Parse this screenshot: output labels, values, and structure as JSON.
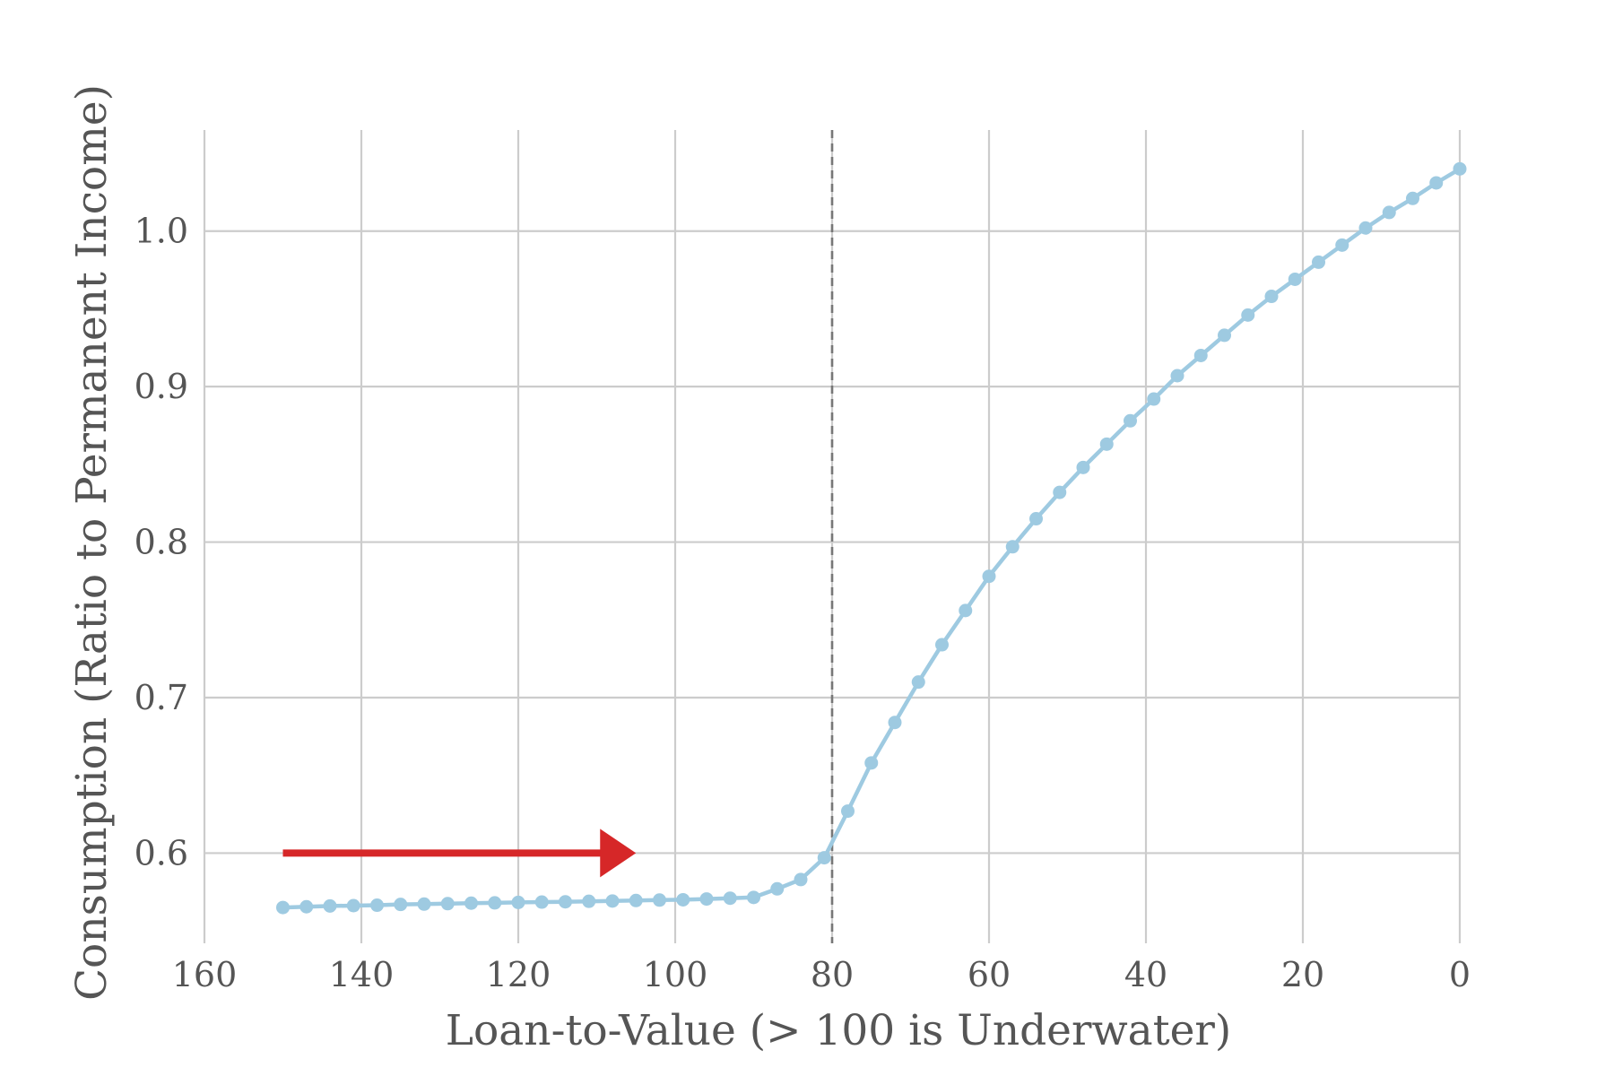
{
  "chart_data": {
    "type": "line",
    "title": "",
    "xlabel": "Loan-to-Value (> 100 is Underwater)",
    "ylabel": "Consumption (Ratio to Permanent Income)",
    "xlim": [
      160,
      0
    ],
    "ylim": [
      0.542,
      1.065
    ],
    "x_reversed": true,
    "grid": true,
    "legend": "none",
    "xticks": [
      160,
      140,
      120,
      100,
      80,
      60,
      40,
      20,
      0
    ],
    "xtick_labels": [
      "160",
      "140",
      "120",
      "100",
      "80",
      "60",
      "40",
      "20",
      "0"
    ],
    "yticks": [
      0.6,
      0.7,
      0.8,
      0.9,
      1.0
    ],
    "ytick_labels": [
      "0.6",
      "0.7",
      "0.8",
      "0.9",
      "1.0"
    ],
    "reference_line": {
      "x": 80,
      "style": "dashed",
      "color": "#777777"
    },
    "arrow": {
      "x_start": 150,
      "x_end": 105,
      "y": 0.6,
      "color": "#d62728"
    },
    "series": [
      {
        "color": "#9ecae1",
        "x": [
          150,
          147,
          144,
          141,
          138,
          135,
          132,
          129,
          126,
          123,
          120,
          117,
          114,
          111,
          108,
          105,
          102,
          99,
          96,
          93,
          90,
          87,
          84,
          81,
          78,
          75,
          72,
          69,
          66,
          63,
          60,
          57,
          54,
          51,
          48,
          45,
          42,
          39,
          36,
          33,
          30,
          27,
          24,
          21,
          18,
          15,
          12,
          9,
          6,
          3,
          0
        ],
        "y": [
          0.565,
          0.5655,
          0.566,
          0.5662,
          0.5665,
          0.567,
          0.5672,
          0.5675,
          0.5678,
          0.568,
          0.5683,
          0.5685,
          0.5687,
          0.569,
          0.5692,
          0.5695,
          0.5698,
          0.57,
          0.5705,
          0.571,
          0.5715,
          0.577,
          0.583,
          0.597,
          0.627,
          0.658,
          0.684,
          0.71,
          0.734,
          0.756,
          0.778,
          0.797,
          0.815,
          0.832,
          0.848,
          0.863,
          0.878,
          0.892,
          0.907,
          0.92,
          0.933,
          0.946,
          0.958,
          0.969,
          0.98,
          0.991,
          1.002,
          1.012,
          1.021,
          1.031,
          1.04
        ]
      }
    ]
  }
}
